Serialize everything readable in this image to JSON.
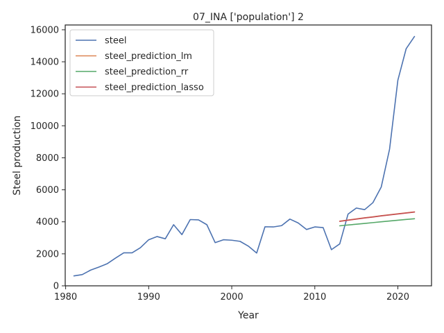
{
  "chart_data": {
    "type": "line",
    "title": "07_INA ['population'] 2",
    "xlabel": "Year",
    "ylabel": "Steel production",
    "xlim": [
      1979.95,
      2024.05
    ],
    "ylim": [
      0,
      16300
    ],
    "xticks": [
      1980,
      1990,
      2000,
      2010,
      2020
    ],
    "xtick_labels": [
      "1980",
      "1990",
      "2000",
      "2010",
      "2020"
    ],
    "yticks": [
      0,
      2000,
      4000,
      6000,
      8000,
      10000,
      12000,
      14000,
      16000
    ],
    "ytick_labels": [
      "0",
      "2000",
      "4000",
      "6000",
      "8000",
      "10000",
      "12000",
      "14000",
      "16000"
    ],
    "grid": false,
    "legend_position": "top-left",
    "series": [
      {
        "name": "steel",
        "color": "#4c72b0",
        "x": [
          1981,
          1982,
          1983,
          1984,
          1985,
          1986,
          1987,
          1988,
          1989,
          1990,
          1991,
          1992,
          1993,
          1994,
          1995,
          1996,
          1997,
          1998,
          1999,
          2000,
          2001,
          2002,
          2003,
          2004,
          2005,
          2006,
          2007,
          2008,
          2009,
          2010,
          2011,
          2012,
          2013,
          2014,
          2015,
          2016,
          2017,
          2018,
          2019,
          2020,
          2021,
          2022
        ],
        "y": [
          620,
          700,
          980,
          1170,
          1380,
          1730,
          2060,
          2060,
          2380,
          2880,
          3080,
          2940,
          3820,
          3200,
          4140,
          4120,
          3820,
          2700,
          2880,
          2850,
          2780,
          2480,
          2050,
          3690,
          3680,
          3760,
          4170,
          3930,
          3520,
          3680,
          3640,
          2260,
          2620,
          4480,
          4860,
          4760,
          5200,
          6180,
          8540,
          12850,
          14820,
          15580
        ]
      },
      {
        "name": "steel_prediction_lm",
        "color": "#dd8452",
        "x": [
          2013,
          2014,
          2015,
          2016,
          2017,
          2018,
          2019,
          2020,
          2021,
          2022
        ],
        "y": [
          4040,
          4110,
          4180,
          4250,
          4310,
          4380,
          4440,
          4500,
          4560,
          4620
        ]
      },
      {
        "name": "steel_prediction_rr",
        "color": "#55a868",
        "x": [
          2013,
          2014,
          2015,
          2016,
          2017,
          2018,
          2019,
          2020,
          2021,
          2022
        ],
        "y": [
          3750,
          3800,
          3850,
          3900,
          3950,
          4000,
          4050,
          4100,
          4150,
          4190
        ]
      },
      {
        "name": "steel_prediction_lasso",
        "color": "#c44e52",
        "x": [
          2013,
          2014,
          2015,
          2016,
          2017,
          2018,
          2019,
          2020,
          2021,
          2022
        ],
        "y": [
          4030,
          4100,
          4170,
          4240,
          4300,
          4370,
          4430,
          4490,
          4550,
          4610
        ]
      }
    ]
  }
}
